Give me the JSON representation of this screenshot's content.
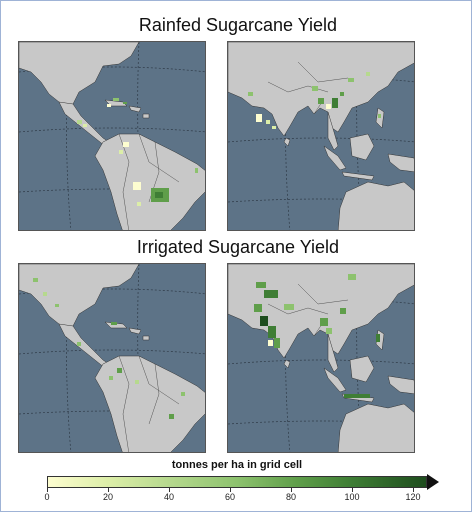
{
  "titles": {
    "rainfed": "Rainfed Sugarcane Yield",
    "irrigated": "Irrigated Sugarcane Yield"
  },
  "maps": [
    {
      "region": "americas",
      "type": "rainfed"
    },
    {
      "region": "asia",
      "type": "rainfed"
    },
    {
      "region": "americas",
      "type": "irrigated"
    },
    {
      "region": "asia",
      "type": "irrigated"
    }
  ],
  "colors": {
    "ocean": "#5d7387",
    "land": "#c8c8c8",
    "border": "#333333",
    "graticule": "#2f3b48",
    "ramp": [
      "#fdfdd0",
      "#dceea8",
      "#b6d98e",
      "#8dc26e",
      "#5f9e4a",
      "#3f7e35",
      "#1e4d1e"
    ]
  },
  "legend": {
    "title": "tonnes per ha in grid cell",
    "ticks": [
      "0",
      "20",
      "40",
      "60",
      "80",
      "100",
      "120"
    ],
    "min": 0,
    "max": 125
  }
}
